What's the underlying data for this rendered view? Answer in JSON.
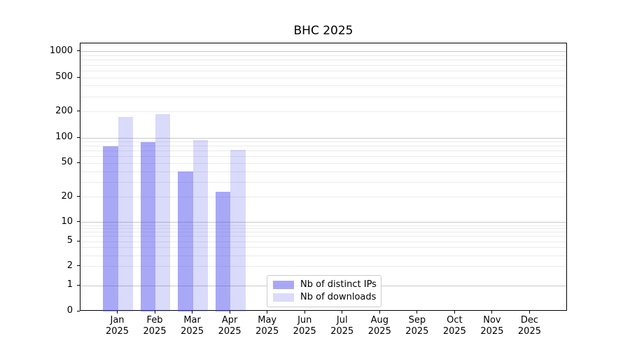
{
  "title": "BHC 2025",
  "colors": {
    "bar_distinct_ips": "rgba(70,70,235,0.47)",
    "bar_downloads": "rgba(70,70,235,0.2)",
    "major_grid": "#c9c9c9",
    "minor_grid": "#ebebeb",
    "axis": "#000000",
    "legend_border": "#cccccc"
  },
  "chart_data": {
    "type": "bar",
    "title": "BHC 2025",
    "categories": [
      "Jan",
      "Feb",
      "Mar",
      "Apr",
      "May",
      "Jun",
      "Jul",
      "Aug",
      "Sep",
      "Oct",
      "Nov",
      "Dec"
    ],
    "category_year": "2025",
    "series": [
      {
        "name": "Nb of distinct IPs",
        "color": "rgba(70,70,235,0.47)",
        "values": [
          80,
          90,
          40,
          23,
          0,
          0,
          0,
          0,
          0,
          0,
          0,
          0
        ]
      },
      {
        "name": "Nb of downloads",
        "color": "rgba(70,70,235,0.2)",
        "values": [
          175,
          190,
          94,
          72,
          0,
          0,
          0,
          0,
          0,
          0,
          0,
          0
        ]
      }
    ],
    "xlabel": "",
    "ylabel": "",
    "yscale": "symlog",
    "yticks": [
      0,
      1,
      2,
      5,
      10,
      20,
      50,
      100,
      200,
      500,
      1000
    ],
    "ylim": [
      0,
      1250
    ],
    "grid": "both",
    "legend_position": "lower center-left inside plot",
    "y_anchor_fractions": {
      "0": 0,
      "1": 0.0966,
      "10": 0.3316,
      "100": 0.6475,
      "1000": 0.9687
    }
  }
}
